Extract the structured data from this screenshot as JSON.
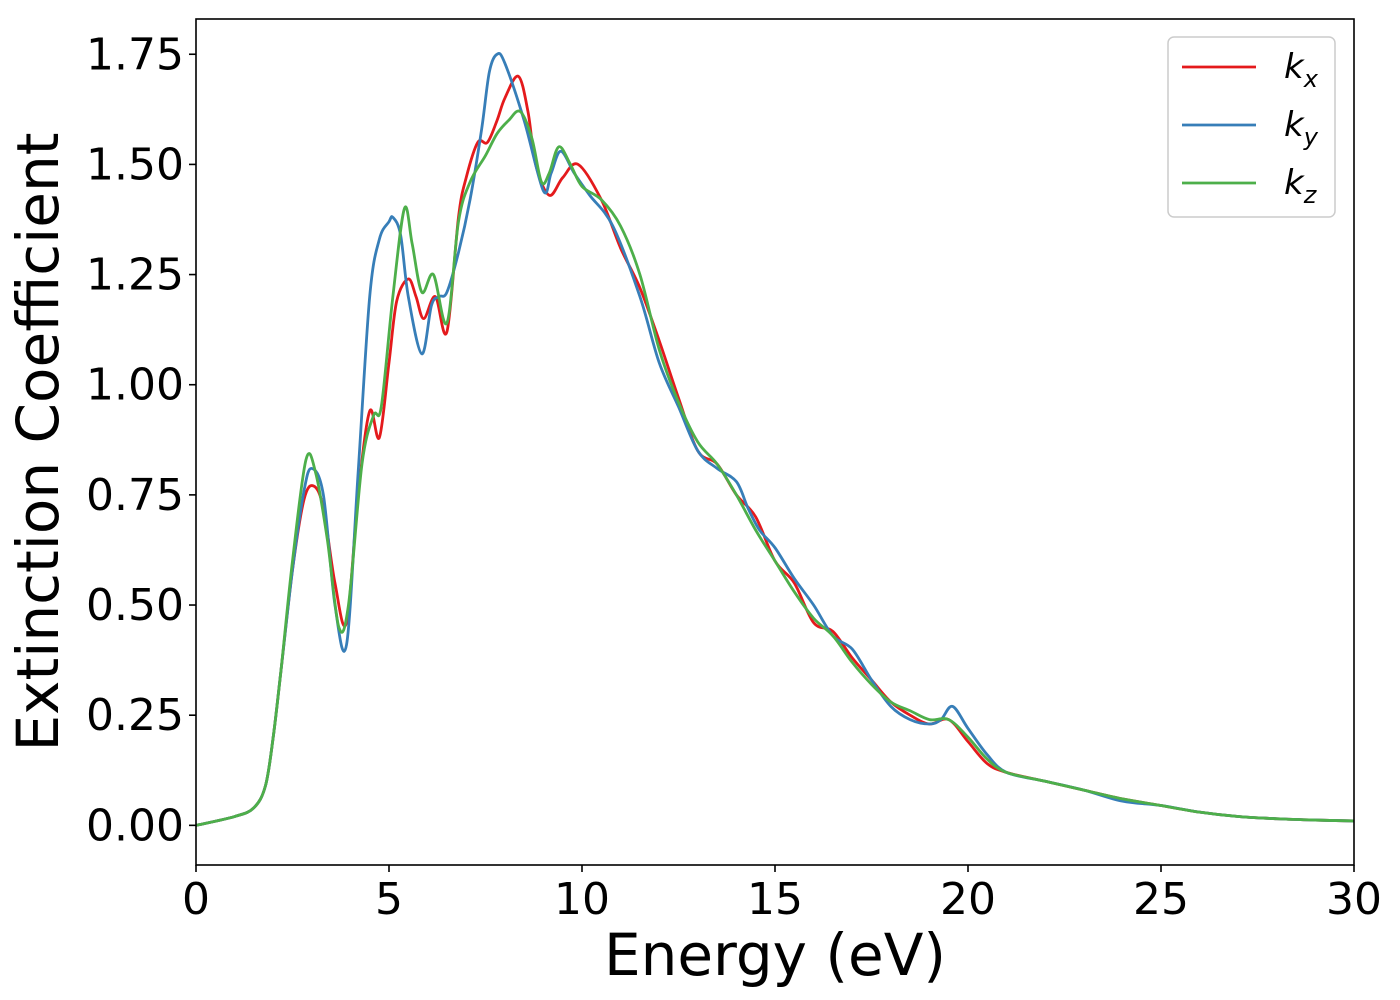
{
  "chart_data": {
    "type": "line",
    "title": "",
    "xlabel": "Energy (eV)",
    "ylabel": "Extinction Coefficient",
    "xlim": [
      0,
      30
    ],
    "ylim": [
      -0.09,
      1.83
    ],
    "xticks": [
      0,
      5,
      10,
      15,
      20,
      25,
      30
    ],
    "xtick_labels": [
      "0",
      "5",
      "10",
      "15",
      "20",
      "25",
      "30"
    ],
    "yticks": [
      0,
      0.25,
      0.5,
      0.75,
      1.0,
      1.25,
      1.5,
      1.75
    ],
    "ytick_labels": [
      "0.00",
      "0.25",
      "0.50",
      "0.75",
      "1.00",
      "1.25",
      "1.50",
      "1.75"
    ],
    "grid": false,
    "legend_position": "top-right",
    "series": [
      {
        "name": "k",
        "subscript": "x",
        "color": "#e41a1c",
        "x": [
          0,
          1.0,
          1.5,
          1.8,
          2.0,
          2.2,
          2.5,
          2.8,
          3.05,
          3.3,
          3.6,
          3.9,
          4.2,
          4.5,
          4.75,
          5.0,
          5.2,
          5.5,
          5.7,
          5.9,
          6.2,
          6.5,
          6.8,
          7.0,
          7.3,
          7.55,
          7.8,
          8.0,
          8.35,
          8.6,
          8.8,
          9.15,
          9.5,
          9.9,
          10.5,
          11.0,
          11.5,
          12.0,
          12.5,
          13.0,
          13.5,
          14.0,
          14.5,
          15.0,
          15.5,
          16.0,
          16.5,
          17.0,
          17.5,
          18.0,
          18.5,
          19.0,
          19.5,
          20.0,
          20.5,
          21.0,
          22.0,
          23.0,
          24.0,
          25.0,
          26.0,
          27.0,
          28.0,
          29.0,
          30.0
        ],
        "y": [
          0.0,
          0.02,
          0.04,
          0.09,
          0.2,
          0.35,
          0.58,
          0.74,
          0.77,
          0.72,
          0.55,
          0.46,
          0.75,
          0.94,
          0.88,
          1.05,
          1.19,
          1.24,
          1.2,
          1.15,
          1.2,
          1.12,
          1.38,
          1.47,
          1.55,
          1.55,
          1.6,
          1.65,
          1.7,
          1.62,
          1.5,
          1.43,
          1.47,
          1.5,
          1.42,
          1.31,
          1.22,
          1.1,
          0.97,
          0.85,
          0.82,
          0.75,
          0.7,
          0.6,
          0.55,
          0.46,
          0.44,
          0.38,
          0.33,
          0.28,
          0.25,
          0.23,
          0.24,
          0.19,
          0.14,
          0.12,
          0.1,
          0.08,
          0.06,
          0.045,
          0.03,
          0.02,
          0.015,
          0.012,
          0.01
        ]
      },
      {
        "name": "k",
        "subscript": "y",
        "color": "#377eb8",
        "x": [
          0,
          1.0,
          1.5,
          1.8,
          2.0,
          2.2,
          2.5,
          2.8,
          3.0,
          3.3,
          3.6,
          3.9,
          4.2,
          4.5,
          4.75,
          5.0,
          5.1,
          5.3,
          5.5,
          5.85,
          6.1,
          6.3,
          6.5,
          6.8,
          7.1,
          7.4,
          7.6,
          7.8,
          8.0,
          8.5,
          9.0,
          9.2,
          9.45,
          9.8,
          10.2,
          10.8,
          11.5,
          12.0,
          12.5,
          13.0,
          13.5,
          14.0,
          14.3,
          14.6,
          15.0,
          15.5,
          16.0,
          16.5,
          17.0,
          17.5,
          18.0,
          18.5,
          19.0,
          19.3,
          19.6,
          20.0,
          20.5,
          21.0,
          22.0,
          23.0,
          24.0,
          25.0,
          26.0,
          27.0,
          28.0,
          29.0,
          30.0
        ],
        "y": [
          0.0,
          0.02,
          0.04,
          0.09,
          0.2,
          0.35,
          0.58,
          0.76,
          0.81,
          0.75,
          0.5,
          0.41,
          0.8,
          1.2,
          1.33,
          1.37,
          1.38,
          1.34,
          1.2,
          1.07,
          1.18,
          1.2,
          1.21,
          1.3,
          1.42,
          1.58,
          1.71,
          1.75,
          1.73,
          1.6,
          1.44,
          1.48,
          1.53,
          1.48,
          1.43,
          1.36,
          1.2,
          1.05,
          0.95,
          0.85,
          0.81,
          0.78,
          0.72,
          0.67,
          0.63,
          0.56,
          0.5,
          0.43,
          0.4,
          0.33,
          0.27,
          0.24,
          0.23,
          0.24,
          0.27,
          0.22,
          0.16,
          0.12,
          0.1,
          0.08,
          0.055,
          0.045,
          0.03,
          0.02,
          0.015,
          0.012,
          0.01
        ]
      },
      {
        "name": "k",
        "subscript": "z",
        "color": "#4daf4a",
        "x": [
          0,
          1.0,
          1.5,
          1.8,
          2.0,
          2.2,
          2.5,
          2.85,
          3.1,
          3.4,
          3.7,
          3.95,
          4.3,
          4.6,
          4.8,
          5.1,
          5.4,
          5.6,
          5.85,
          6.15,
          6.5,
          6.8,
          7.1,
          7.5,
          7.8,
          8.1,
          8.4,
          8.7,
          8.95,
          9.15,
          9.4,
          9.7,
          10.0,
          10.5,
          11.0,
          11.5,
          12.0,
          12.5,
          13.0,
          13.5,
          14.0,
          14.5,
          15.0,
          15.5,
          16.0,
          16.5,
          17.0,
          17.5,
          18.0,
          18.5,
          19.0,
          19.5,
          20.0,
          20.5,
          21.0,
          22.0,
          23.0,
          24.0,
          25.0,
          26.0,
          27.0,
          28.0,
          29.0,
          30.0
        ],
        "y": [
          0.0,
          0.02,
          0.04,
          0.09,
          0.2,
          0.35,
          0.6,
          0.83,
          0.8,
          0.65,
          0.45,
          0.5,
          0.82,
          0.93,
          0.95,
          1.2,
          1.4,
          1.32,
          1.21,
          1.25,
          1.14,
          1.37,
          1.46,
          1.52,
          1.57,
          1.6,
          1.62,
          1.56,
          1.46,
          1.48,
          1.54,
          1.5,
          1.45,
          1.42,
          1.36,
          1.25,
          1.08,
          0.96,
          0.87,
          0.82,
          0.75,
          0.67,
          0.6,
          0.53,
          0.47,
          0.43,
          0.37,
          0.32,
          0.28,
          0.26,
          0.24,
          0.24,
          0.2,
          0.15,
          0.12,
          0.1,
          0.08,
          0.06,
          0.045,
          0.03,
          0.02,
          0.015,
          0.012,
          0.01
        ]
      }
    ]
  }
}
